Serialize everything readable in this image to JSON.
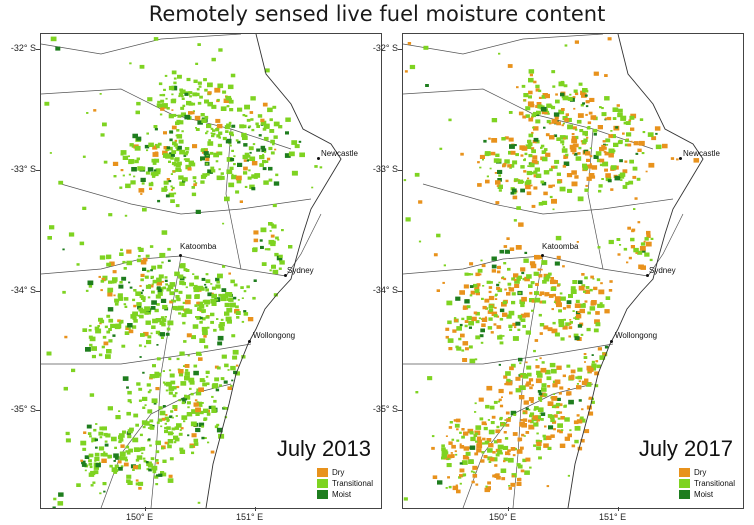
{
  "title": "Remotely sensed live fuel moisture content",
  "colors": {
    "dry": "#e8921c",
    "transitional": "#7ed321",
    "moist": "#1e7d1e"
  },
  "lat_labels": [
    "-32° S",
    "-33° S",
    "-34° S",
    "-35° S"
  ],
  "lon_labels": [
    "150° E",
    "151° E"
  ],
  "cities": [
    "Newcastle",
    "Katoomba",
    "Sydney",
    "Wollongong"
  ],
  "legend": [
    "Dry",
    "Transitional",
    "Moist"
  ],
  "panels": [
    {
      "period": "July 2013"
    },
    {
      "period": "July 2017"
    }
  ]
}
